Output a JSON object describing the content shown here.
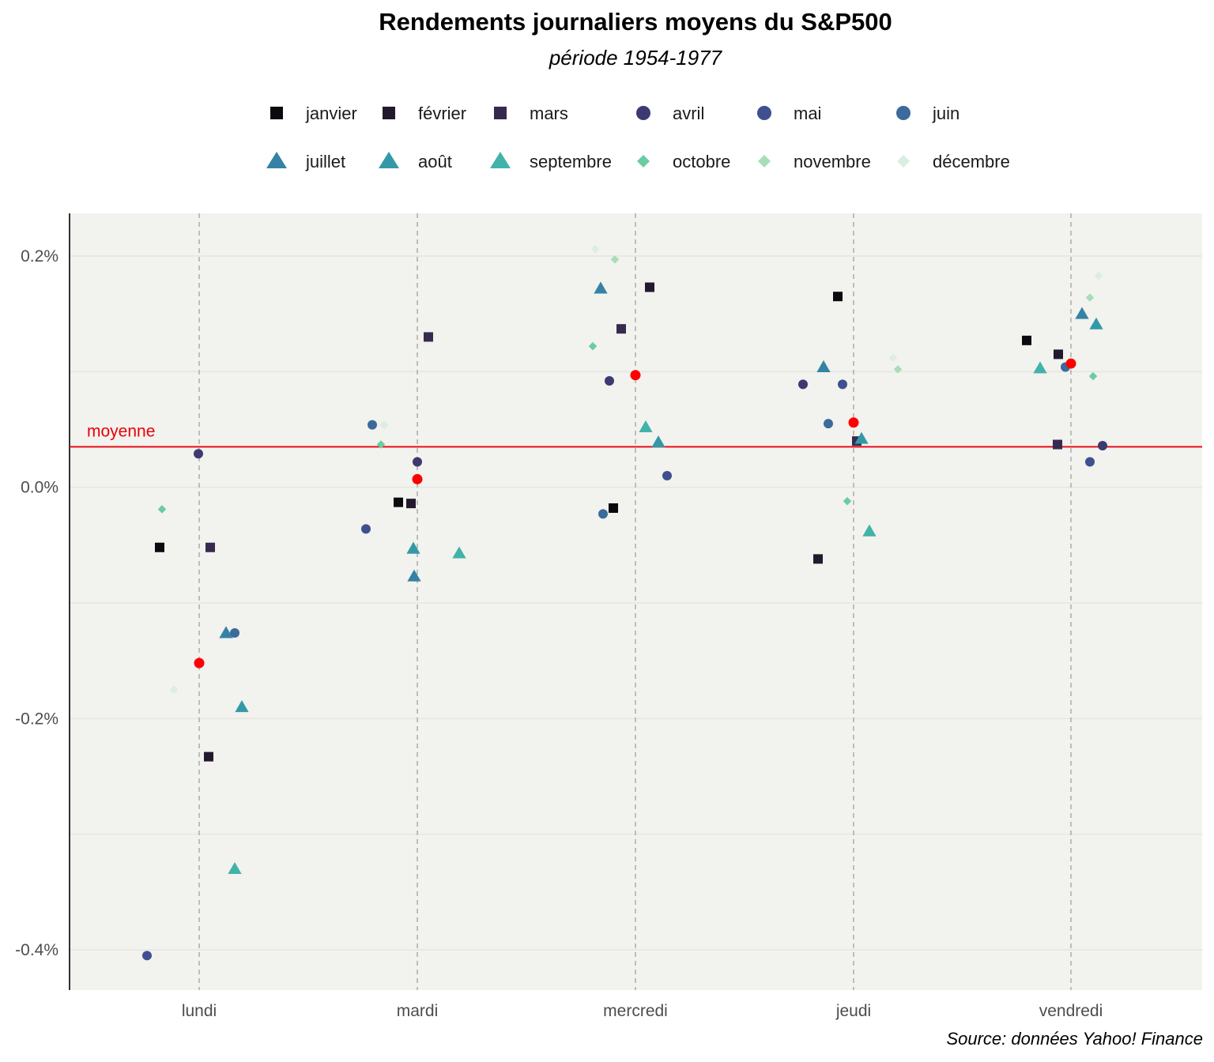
{
  "title": "Rendements journaliers moyens du S&P500",
  "subtitle": "période 1954-1977",
  "caption": "Source: données Yahoo! Finance",
  "average_label": "moyenne",
  "colors": {
    "panel_background": "#f2f2ee",
    "grid": "#e6e6e1",
    "day_line": "#b0b0b0",
    "average": "#e8000b",
    "day_mean_point": "#ff0000"
  },
  "chart_data": {
    "type": "scatter",
    "title": "Rendements journaliers moyens du S&P500",
    "subtitle": "période 1954-1977",
    "xlabel": "",
    "ylabel": "",
    "categories": [
      "lundi",
      "mardi",
      "mercredi",
      "jeudi",
      "vendredi"
    ],
    "ylim": [
      -0.435,
      0.235
    ],
    "y_ticks": [
      0.2,
      0.0,
      -0.2,
      -0.4
    ],
    "y_tick_labels": [
      "0.2%",
      "0.0%",
      "-0.2%",
      "-0.4%"
    ],
    "grid": true,
    "legend_position": "top",
    "overall_mean": 0.035,
    "day_means": [
      -0.152,
      0.007,
      0.097,
      0.056,
      0.107
    ],
    "series": [
      {
        "name": "janvier",
        "shape": "square",
        "color": "#0d0a0f",
        "values": [
          -0.052,
          -0.013,
          -0.018,
          0.165,
          0.127
        ]
      },
      {
        "name": "février",
        "shape": "square",
        "color": "#221a2c",
        "values": [
          -0.233,
          -0.014,
          0.173,
          -0.062,
          0.115
        ]
      },
      {
        "name": "mars",
        "shape": "square",
        "color": "#362a4f",
        "values": [
          -0.052,
          0.13,
          0.137,
          0.04,
          0.037
        ]
      },
      {
        "name": "avril",
        "shape": "circle",
        "color": "#3d3a71",
        "values": [
          0.029,
          0.022,
          0.092,
          0.089,
          0.036
        ]
      },
      {
        "name": "mai",
        "shape": "circle",
        "color": "#404f8f",
        "values": [
          -0.405,
          -0.036,
          0.01,
          0.089,
          0.022
        ]
      },
      {
        "name": "juin",
        "shape": "circle",
        "color": "#3b6a9b",
        "values": [
          -0.126,
          0.054,
          -0.023,
          0.055,
          0.104
        ]
      },
      {
        "name": "juillet",
        "shape": "triangle",
        "color": "#3483a4",
        "values": [
          -0.126,
          -0.077,
          0.172,
          0.104,
          0.15
        ]
      },
      {
        "name": "août",
        "shape": "triangle",
        "color": "#3399a7",
        "values": [
          -0.19,
          -0.053,
          0.039,
          0.042,
          0.141
        ]
      },
      {
        "name": "septembre",
        "shape": "triangle",
        "color": "#41b3a8",
        "values": [
          -0.33,
          -0.057,
          0.052,
          -0.038,
          0.103
        ]
      },
      {
        "name": "octobre",
        "shape": "diamond",
        "color": "#6acca3",
        "values": [
          -0.019,
          0.037,
          0.122,
          -0.012,
          0.096
        ]
      },
      {
        "name": "novembre",
        "shape": "diamond",
        "color": "#a7ddb9",
        "values": [
          -0.154,
          0.054,
          0.197,
          0.102,
          0.164
        ]
      },
      {
        "name": "décembre",
        "shape": "diamond",
        "color": "#dbeee0",
        "values": [
          -0.175,
          0.054,
          0.206,
          0.112,
          0.183
        ]
      }
    ]
  }
}
